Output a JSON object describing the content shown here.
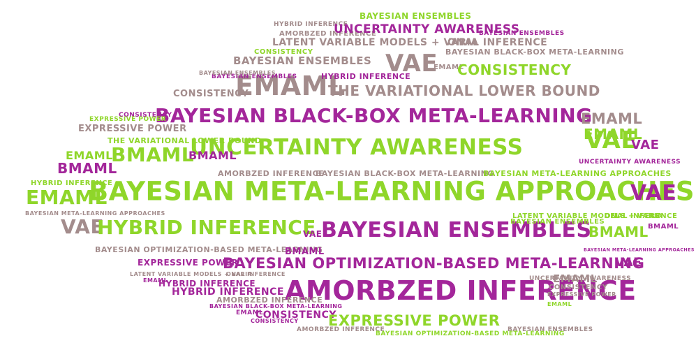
{
  "palette": {
    "green": "#8fd62a",
    "purple": "#a3269a",
    "gray": "#a38c8c"
  },
  "words": [
    {
      "text": "BAYESIAN ENSEMBLES",
      "color": "green"
    },
    {
      "text": "HYBRID INFERENCE",
      "color": "gray"
    },
    {
      "text": "AMORBZED INFERENCE",
      "color": "gray"
    },
    {
      "text": "UNCERTAINTY AWARENESS",
      "color": "purple"
    },
    {
      "text": "BAYESIAN ENSEMBLES",
      "color": "purple"
    },
    {
      "text": "LATENT VARIABLE MODELS + VARIA",
      "color": "gray"
    },
    {
      "text": "ONAL INFERENCE",
      "color": "gray"
    },
    {
      "text": "CONSISTENCY",
      "color": "green"
    },
    {
      "text": "BAYESIAN BLACK-BOX META-LEARNING",
      "color": "gray"
    },
    {
      "text": "BAYESIAN ENSEMBLES",
      "color": "gray"
    },
    {
      "text": "VAE",
      "color": "gray"
    },
    {
      "text": "EMAML",
      "color": "gray"
    },
    {
      "text": "CONSISTENCY",
      "color": "green"
    },
    {
      "text": "EMAML",
      "color": "gray"
    },
    {
      "text": "HYBRID INFERENCE",
      "color": "purple"
    },
    {
      "text": "THE VARIATIONAL LOWER BOUND",
      "color": "gray"
    },
    {
      "text": "CONSISTENCY",
      "color": "gray"
    },
    {
      "text": "BAYESIAN BLACK-BOX META-LEARNING",
      "color": "purple"
    },
    {
      "text": "EMAML",
      "color": "gray"
    },
    {
      "text": "EXPRESSIVE POWER",
      "color": "gray"
    },
    {
      "text": "EMAML",
      "color": "green"
    },
    {
      "text": "UNCERTAINTY AWARENESS",
      "color": "green"
    },
    {
      "text": "VAE",
      "color": "green"
    },
    {
      "text": "VAE",
      "color": "purple"
    },
    {
      "text": "BMAML",
      "color": "purple"
    },
    {
      "text": "BMAML",
      "color": "green"
    },
    {
      "text": "BMAML",
      "color": "purple"
    },
    {
      "text": "AMORBZED INFERENCE",
      "color": "gray"
    },
    {
      "text": "BAYESIAN BLACK-BOX META-LEARNING",
      "color": "gray"
    },
    {
      "text": "BAYESIAN META-LEARNING APPROACHES",
      "color": "green"
    },
    {
      "text": "UNCERTAINTY AWARENESS",
      "color": "purple"
    },
    {
      "text": "BAYESIAN META-LEARNING APPROACHES",
      "color": "green"
    },
    {
      "text": "VAE",
      "color": "purple"
    },
    {
      "text": "EMAML",
      "color": "green"
    },
    {
      "text": "VAE",
      "color": "gray"
    },
    {
      "text": "HYBRID INFERENCE",
      "color": "green"
    },
    {
      "text": "BAYESIAN ENSEMBLES",
      "color": "purple"
    },
    {
      "text": "BMAML",
      "color": "green"
    },
    {
      "text": "VAE",
      "color": "purple"
    },
    {
      "text": "BMAML",
      "color": "purple"
    },
    {
      "text": "BAYESIAN OPTIMIZATION-BASED META-LEARNING",
      "color": "gray"
    },
    {
      "text": "EXPRESSIVE POWER",
      "color": "purple"
    },
    {
      "text": "BAYESIAN OPTIMIZATION-BASED META-LEARNING",
      "color": "purple"
    },
    {
      "text": "VAE",
      "color": "purple"
    },
    {
      "text": "HYBRID INFERENCE",
      "color": "purple"
    },
    {
      "text": "AMORBZED INFERENCE",
      "color": "purple"
    },
    {
      "text": "EMAML",
      "color": "gray"
    },
    {
      "text": "CONSISTENCY",
      "color": "purple"
    },
    {
      "text": "EXPRESSIVE POWER",
      "color": "green"
    },
    {
      "text": "UNCERTAINTY AWARENESS",
      "color": "gray"
    },
    {
      "text": "CONSISTENCY",
      "color": "gray"
    },
    {
      "text": "EXPRESSIVE POWER",
      "color": "gray"
    },
    {
      "text": "BAYESIAN ENSEMBLES",
      "color": "gray"
    },
    {
      "text": "EMAML",
      "color": "purple"
    },
    {
      "text": "BAYESIAN ENSEMBLES",
      "color": "green"
    },
    {
      "text": "LATENT VARIABLE MODELS + VARIA",
      "color": "green"
    },
    {
      "text": "ONAL INFERENCE",
      "color": "green"
    },
    {
      "text": "BAYESIAN META-LEARNING APPROACHES",
      "color": "purple"
    },
    {
      "text": "BAYESIAN ENSEMBLES",
      "color": "purple"
    },
    {
      "text": "HYBRID INFERENCE",
      "color": "green"
    },
    {
      "text": "CONSISTENCY",
      "color": "purple"
    },
    {
      "text": "BAYESIAN ENSEMBLES",
      "color": "gray"
    },
    {
      "text": "EXPRESSIVE POWER",
      "color": "green"
    },
    {
      "text": "THE VARIATIONAL LOWER BOUND",
      "color": "green"
    },
    {
      "text": "BAYESIAN META-LEARNING APPROACHES",
      "color": "gray"
    },
    {
      "text": "EMAML",
      "color": "green"
    },
    {
      "text": "BMAML",
      "color": "purple"
    },
    {
      "text": "HYBRID INFERENCE",
      "color": "purple"
    },
    {
      "text": "LATENT VARIABLE MODELS + VARIA",
      "color": "gray"
    },
    {
      "text": "ONAL INFERENCE",
      "color": "gray"
    },
    {
      "text": "AMORBZED INFERENCE",
      "color": "gray"
    },
    {
      "text": "BAYESIAN BLACK-BOX META-LEARNING",
      "color": "purple"
    },
    {
      "text": "EMAML",
      "color": "purple"
    },
    {
      "text": "CONSISTENCY",
      "color": "purple"
    },
    {
      "text": "AMORBZED INFERENCE",
      "color": "gray"
    },
    {
      "text": "BAYESIAN OPTIMIZATION-BASED META-LEARNING",
      "color": "green"
    },
    {
      "text": "EMAML",
      "color": "green"
    }
  ]
}
